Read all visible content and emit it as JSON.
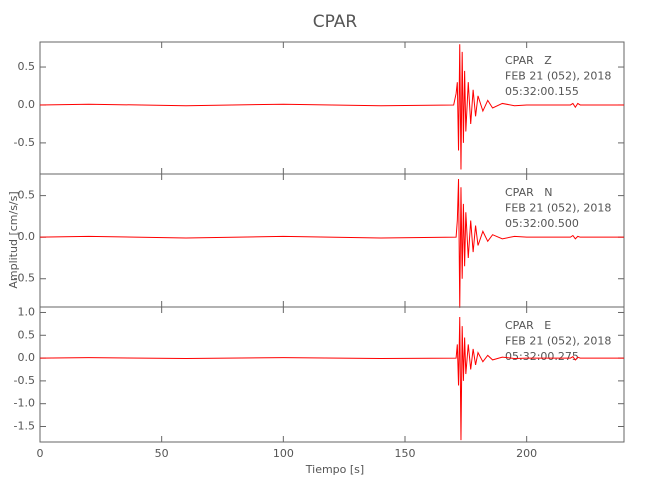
{
  "chart_data": [
    {
      "type": "line",
      "title": "CPAR",
      "annotations": [
        "CPAR   Z",
        "FEB 21 (052), 2018",
        "05:32:00.155"
      ],
      "xlim": [
        0,
        240
      ],
      "ylim": [
        -0.91,
        0.83
      ],
      "yticks": [
        0.5,
        {
          "value": 0,
          "label": "0.0"
        },
        -0.5
      ],
      "series": [
        {
          "color": "#ff0000",
          "x": [
            0,
            20,
            60,
            100,
            140,
            170,
            171,
            171.5,
            172,
            172.5,
            173,
            173.5,
            174,
            174.5,
            175,
            176,
            177,
            178,
            179,
            180,
            182,
            184,
            186,
            190,
            195,
            200,
            218,
            219,
            220,
            221,
            222,
            240
          ],
          "values": [
            0,
            0.01,
            -0.01,
            0.01,
            -0.01,
            0,
            0.15,
            0.3,
            -0.6,
            0.8,
            -0.85,
            0.7,
            -0.5,
            0.45,
            -0.35,
            0.3,
            -0.25,
            0.2,
            -0.15,
            0.12,
            -0.08,
            0.06,
            -0.04,
            0.02,
            -0.01,
            0,
            0,
            0.02,
            -0.03,
            0.02,
            0,
            0
          ]
        }
      ]
    },
    {
      "type": "line",
      "ylabel": "Amplitud [cm/s/s]",
      "annotations": [
        "CPAR   N",
        "FEB 21 (052), 2018",
        "05:32:00.500"
      ],
      "xlim": [
        0,
        240
      ],
      "ylim": [
        -0.84,
        0.76
      ],
      "yticks": [
        0.5,
        {
          "value": 0,
          "label": "0.0"
        },
        -0.5
      ],
      "series": [
        {
          "color": "#ff0000",
          "x": [
            0,
            20,
            60,
            100,
            140,
            171,
            171.5,
            172,
            172.5,
            173,
            173.5,
            174,
            174.5,
            175,
            176,
            177,
            178,
            179,
            180,
            182,
            184,
            186,
            190,
            195,
            200,
            218,
            219,
            220,
            221,
            222,
            240
          ],
          "values": [
            0,
            0.01,
            -0.01,
            0.01,
            -0.01,
            0,
            0.2,
            0.7,
            -0.85,
            0.6,
            -0.5,
            0.4,
            -0.35,
            0.3,
            -0.25,
            0.2,
            -0.18,
            0.14,
            -0.1,
            0.07,
            -0.05,
            0.03,
            -0.02,
            0.01,
            0,
            0,
            0.02,
            -0.02,
            0.01,
            0,
            0
          ]
        }
      ]
    },
    {
      "type": "line",
      "xlabel": "Tiempo [s]",
      "annotations": [
        "CPAR   E",
        "FEB 21 (052), 2018",
        "05:32:00.275"
      ],
      "xlim": [
        0,
        240
      ],
      "ylim": [
        -1.84,
        1.12
      ],
      "xticks": [
        0,
        50,
        100,
        150,
        200
      ],
      "yticks": [
        {
          "value": 1,
          "label": "1.0"
        },
        0.5,
        {
          "value": 0,
          "label": "0.0"
        },
        -0.5,
        {
          "value": -1,
          "label": "-1.0"
        },
        -1.5
      ],
      "series": [
        {
          "color": "#ff0000",
          "x": [
            0,
            20,
            60,
            100,
            140,
            171,
            171.5,
            172,
            172.5,
            173,
            173.5,
            174,
            174.5,
            175,
            176,
            177,
            178,
            179,
            180,
            182,
            184,
            186,
            190,
            195,
            200,
            218,
            219,
            220,
            221,
            222,
            240
          ],
          "values": [
            0,
            0.01,
            -0.01,
            0.01,
            -0.01,
            0,
            0.3,
            -0.6,
            0.9,
            -1.8,
            0.7,
            -0.5,
            0.45,
            -0.35,
            0.3,
            -0.25,
            0.2,
            -0.15,
            0.12,
            -0.08,
            0.06,
            -0.04,
            0.02,
            -0.01,
            0,
            0,
            0.03,
            -0.04,
            0.02,
            0,
            0
          ]
        }
      ]
    }
  ]
}
